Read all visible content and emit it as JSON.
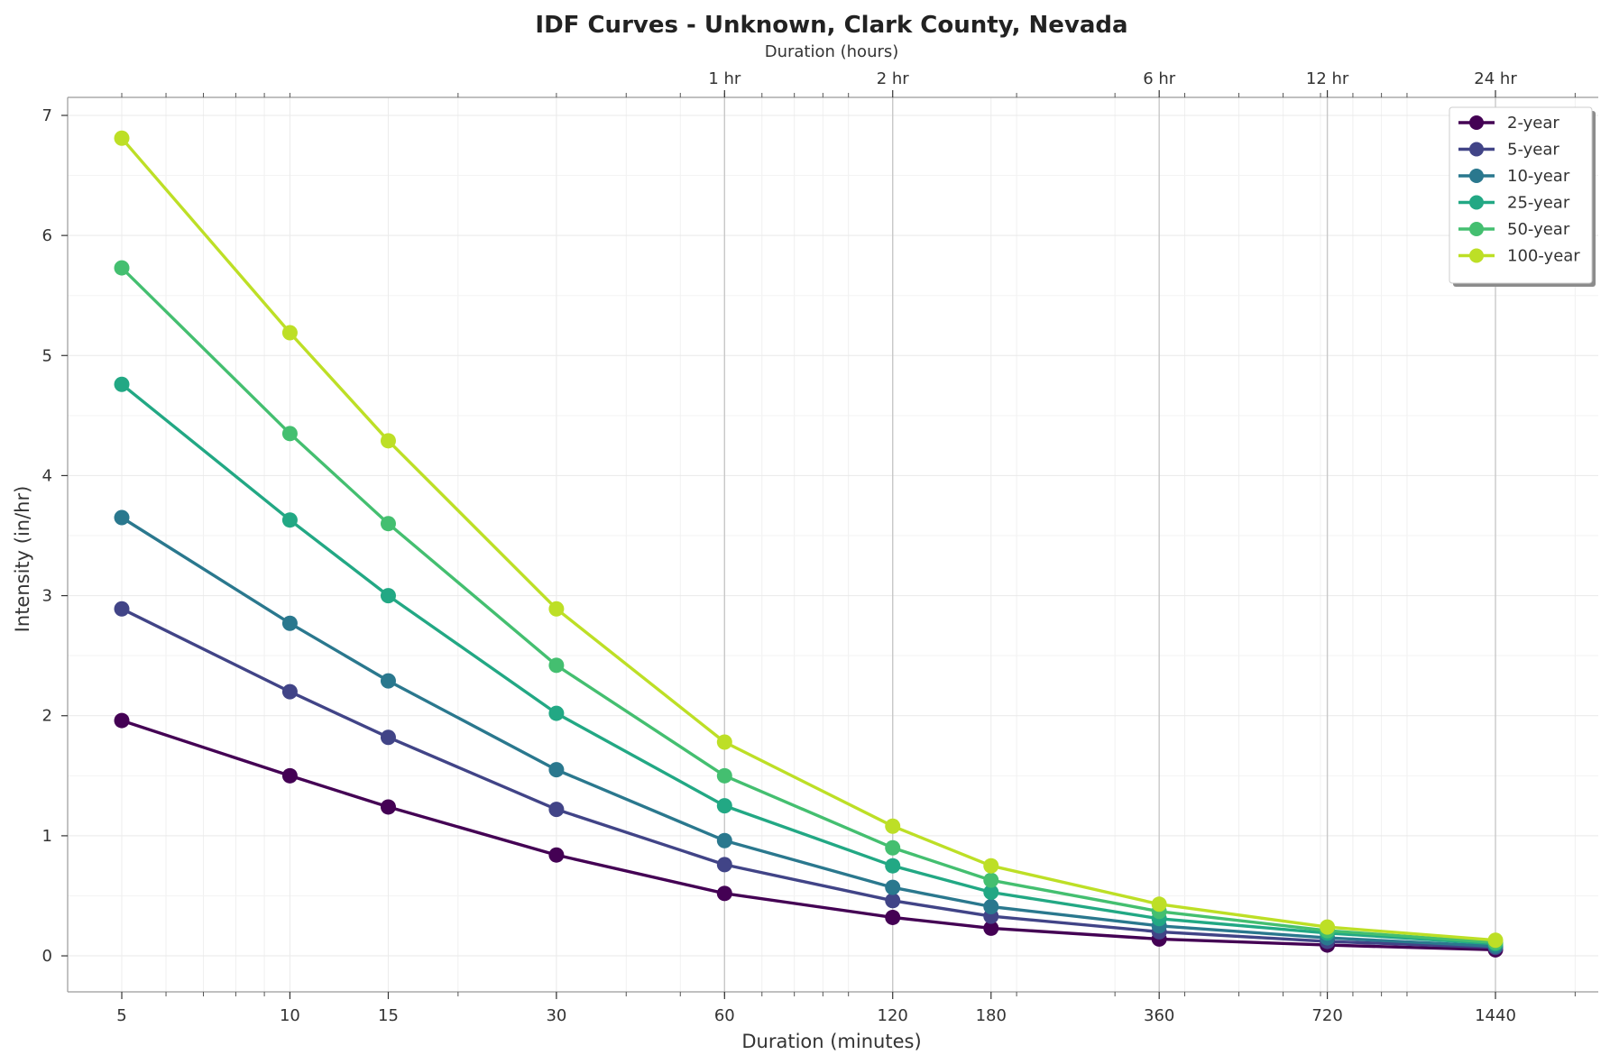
{
  "chart_data": {
    "type": "line",
    "title": "IDF Curves - Unknown, Clark County, Nevada",
    "xlabel": "Duration (minutes)",
    "ylabel": "Intensity (in/hr)",
    "top_xlabel": "Duration (hours)",
    "x_scale": "log",
    "xlim": [
      4,
      2200
    ],
    "ylim": [
      -0.3,
      7.15
    ],
    "x": [
      5,
      10,
      15,
      30,
      60,
      120,
      180,
      360,
      720,
      1440
    ],
    "x_tick_labels": [
      "5",
      "10",
      "15",
      "30",
      "60",
      "120",
      "180",
      "360",
      "720",
      "1440"
    ],
    "y_ticks": [
      0,
      1,
      2,
      3,
      4,
      5,
      6,
      7
    ],
    "top_ticks": [
      {
        "x": 60,
        "label": "1 hr"
      },
      {
        "x": 120,
        "label": "2 hr"
      },
      {
        "x": 360,
        "label": "6 hr"
      },
      {
        "x": 720,
        "label": "12 hr"
      },
      {
        "x": 1440,
        "label": "24 hr"
      }
    ],
    "grid": true,
    "legend_position": "top-right",
    "series": [
      {
        "name": "2-year",
        "color": "#440154",
        "values": [
          1.96,
          1.5,
          1.24,
          0.84,
          0.52,
          0.32,
          0.23,
          0.14,
          0.09,
          0.05
        ]
      },
      {
        "name": "5-year",
        "color": "#414487",
        "values": [
          2.89,
          2.2,
          1.82,
          1.22,
          0.76,
          0.46,
          0.33,
          0.2,
          0.12,
          0.07
        ]
      },
      {
        "name": "10-year",
        "color": "#2a788e",
        "values": [
          3.65,
          2.77,
          2.29,
          1.55,
          0.96,
          0.57,
          0.41,
          0.25,
          0.15,
          0.08
        ]
      },
      {
        "name": "25-year",
        "color": "#22a884",
        "values": [
          4.76,
          3.63,
          3.0,
          2.02,
          1.25,
          0.75,
          0.53,
          0.31,
          0.19,
          0.1
        ]
      },
      {
        "name": "50-year",
        "color": "#44bf70",
        "values": [
          5.73,
          4.35,
          3.6,
          2.42,
          1.5,
          0.9,
          0.63,
          0.37,
          0.21,
          0.11
        ]
      },
      {
        "name": "100-year",
        "color": "#bddf26",
        "values": [
          6.81,
          5.19,
          4.29,
          2.89,
          1.78,
          1.08,
          0.75,
          0.43,
          0.24,
          0.13
        ]
      }
    ]
  }
}
